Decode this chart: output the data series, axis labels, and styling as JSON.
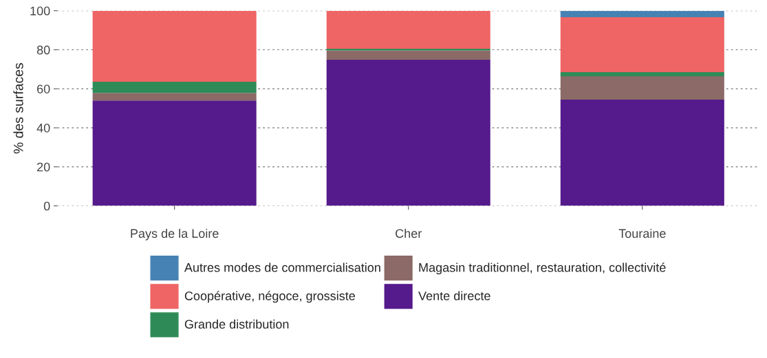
{
  "chart_data": {
    "type": "bar",
    "stacked": true,
    "ylabel": "% des surfaces",
    "categories": [
      "Pays de la Loire",
      "Cher",
      "Touraine"
    ],
    "series": [
      {
        "name": "Vente directe",
        "color": "#551a8b",
        "values": [
          54.0,
          74.9,
          54.4
        ]
      },
      {
        "name": "Magasin traditionnel, restauration, collectivité",
        "color": "#8b6a67",
        "values": [
          3.9,
          4.7,
          12.0
        ]
      },
      {
        "name": "Grande distribution",
        "color": "#2e8b57",
        "values": [
          5.7,
          0.9,
          2.1
        ]
      },
      {
        "name": "Coopérative, négoce, grossiste",
        "color": "#ef6464",
        "values": [
          36.4,
          19.5,
          28.2
        ]
      },
      {
        "name": "Autres modes de commercialisation",
        "color": "#4682b4",
        "values": [
          0,
          0,
          3.3
        ]
      }
    ],
    "ylim": [
      0,
      100
    ],
    "yticks": [
      0,
      20,
      40,
      60,
      80,
      100
    ],
    "grid": "y",
    "legend": "bottom"
  }
}
